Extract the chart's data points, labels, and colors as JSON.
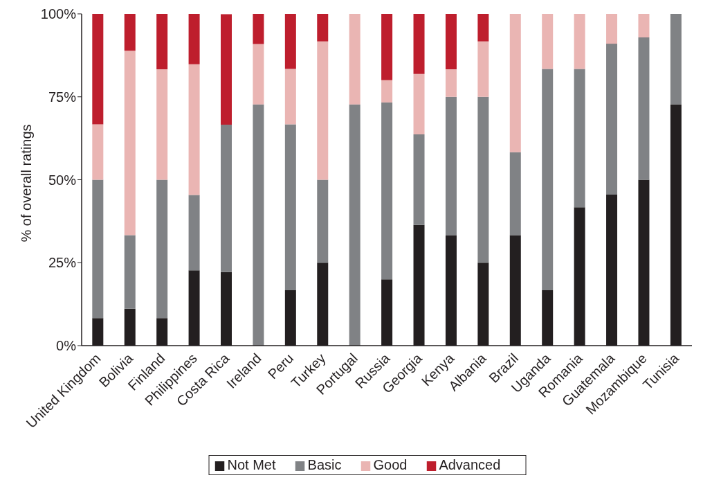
{
  "chart_data": {
    "type": "bar",
    "stacked": true,
    "ylabel": "% of overall  ratings",
    "categories": [
      "United Kingdom",
      "Bolivia",
      "Finland",
      "Philippines",
      "Costa Rica",
      "Ireland",
      "Peru",
      "Turkey",
      "Portugal",
      "Russia",
      "Georgia",
      "Kenya",
      "Albania",
      "Brazil",
      "Uganda",
      "Romania",
      "Guatemala",
      "Mozambique",
      "Tunisia"
    ],
    "series": [
      {
        "name": "Not Met",
        "color": "#231f20",
        "values": [
          8.3,
          11.1,
          8.3,
          22.7,
          22.2,
          0,
          16.7,
          25,
          0,
          20,
          36.4,
          33.3,
          25,
          33.3,
          16.7,
          41.7,
          45.5,
          50,
          72.7
        ]
      },
      {
        "name": "Basic",
        "color": "#808285",
        "values": [
          41.7,
          22.2,
          41.7,
          22.7,
          44.4,
          72.7,
          50,
          25,
          72.7,
          53.3,
          27.3,
          41.7,
          50,
          25,
          66.7,
          41.7,
          45.5,
          42.9,
          27.3
        ]
      },
      {
        "name": "Good",
        "color": "#eab5b3",
        "values": [
          16.7,
          55.6,
          33.3,
          39.4,
          0,
          18.2,
          16.7,
          41.7,
          27.3,
          6.7,
          18.2,
          8.3,
          16.7,
          41.7,
          16.7,
          16.7,
          9.1,
          7.1,
          0
        ]
      },
      {
        "name": "Advanced",
        "color": "#be1e2d",
        "values": [
          33.3,
          11.1,
          16.7,
          15.2,
          33.3,
          9.1,
          16.7,
          8.3,
          0,
          20,
          18.2,
          16.7,
          8.3,
          0,
          0,
          0,
          0,
          0,
          0
        ]
      }
    ],
    "ylim": [
      0,
      100
    ],
    "yticks": [
      {
        "value": 0,
        "label": "0%"
      },
      {
        "value": 25,
        "label": "25%"
      },
      {
        "value": 50,
        "label": "50%"
      },
      {
        "value": 75,
        "label": "75%"
      },
      {
        "value": 100,
        "label": "100%"
      }
    ],
    "grid": false,
    "legend": "bottom"
  }
}
